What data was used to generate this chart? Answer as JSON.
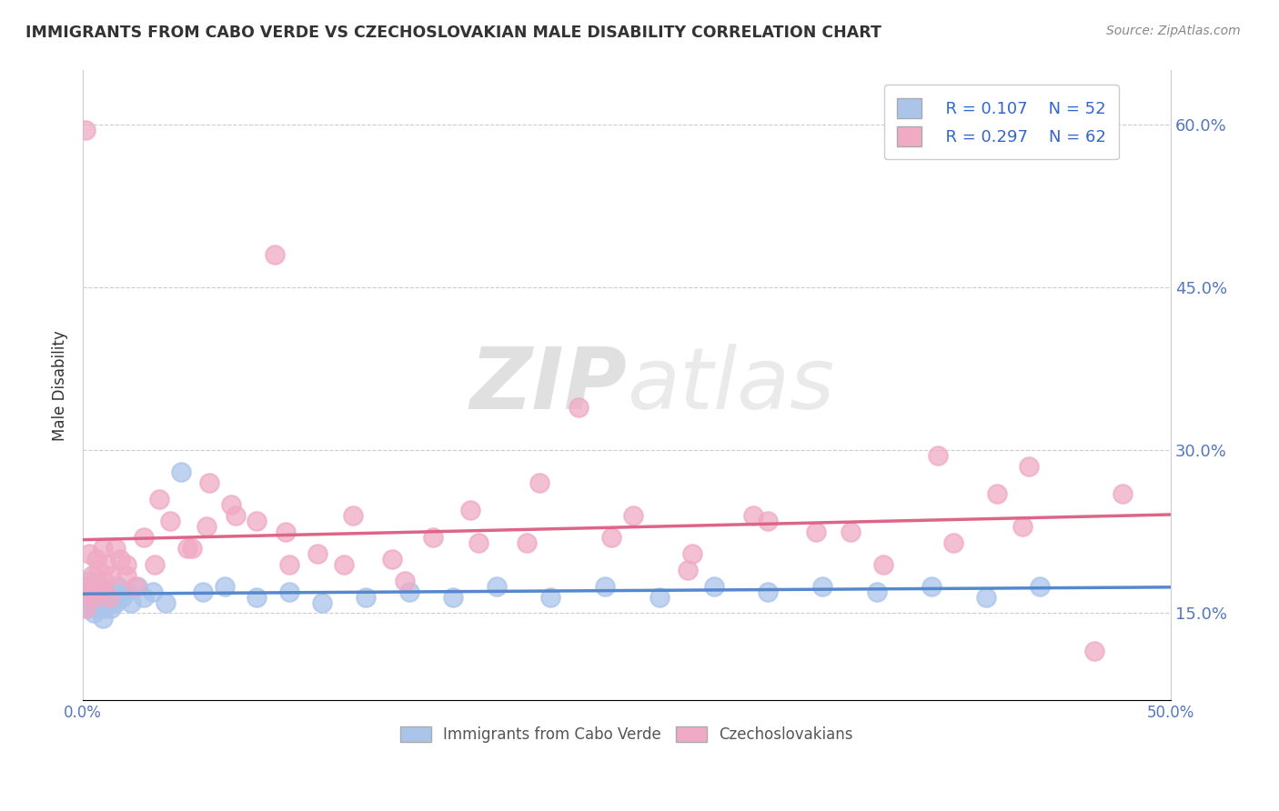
{
  "title": "IMMIGRANTS FROM CABO VERDE VS CZECHOSLOVAKIAN MALE DISABILITY CORRELATION CHART",
  "source": "Source: ZipAtlas.com",
  "ylabel": "Male Disability",
  "x_min": 0.0,
  "x_max": 0.5,
  "y_min": 0.07,
  "y_max": 0.65,
  "right_y_ticks": [
    0.15,
    0.3,
    0.45,
    0.6
  ],
  "right_y_labels": [
    "15.0%",
    "30.0%",
    "45.0%",
    "60.0%"
  ],
  "x_ticks": [
    0.0,
    0.5
  ],
  "x_tick_labels": [
    "0.0%",
    "50.0%"
  ],
  "cabo_verde_R": "0.107",
  "cabo_verde_N": "52",
  "czech_R": "0.297",
  "czech_N": "62",
  "cabo_verde_color": "#aac4ea",
  "czech_color": "#f0aac4",
  "cabo_verde_line_color": "#5588cc",
  "czech_line_color": "#dd6688",
  "cabo_verde_x": [
    0.001,
    0.002,
    0.002,
    0.003,
    0.003,
    0.004,
    0.004,
    0.005,
    0.005,
    0.006,
    0.006,
    0.007,
    0.007,
    0.008,
    0.008,
    0.009,
    0.009,
    0.01,
    0.01,
    0.011,
    0.012,
    0.013,
    0.014,
    0.015,
    0.016,
    0.018,
    0.02,
    0.022,
    0.025,
    0.028,
    0.032,
    0.038,
    0.045,
    0.055,
    0.065,
    0.08,
    0.095,
    0.11,
    0.13,
    0.15,
    0.17,
    0.19,
    0.215,
    0.24,
    0.265,
    0.29,
    0.315,
    0.34,
    0.365,
    0.39,
    0.415,
    0.44
  ],
  "cabo_verde_y": [
    0.17,
    0.155,
    0.175,
    0.16,
    0.18,
    0.165,
    0.175,
    0.15,
    0.17,
    0.16,
    0.175,
    0.155,
    0.17,
    0.16,
    0.175,
    0.145,
    0.165,
    0.155,
    0.17,
    0.16,
    0.165,
    0.155,
    0.17,
    0.16,
    0.175,
    0.165,
    0.17,
    0.16,
    0.175,
    0.165,
    0.17,
    0.16,
    0.28,
    0.17,
    0.175,
    0.165,
    0.17,
    0.16,
    0.165,
    0.17,
    0.165,
    0.175,
    0.165,
    0.175,
    0.165,
    0.175,
    0.17,
    0.175,
    0.17,
    0.175,
    0.165,
    0.175
  ],
  "czech_x": [
    0.001,
    0.002,
    0.003,
    0.003,
    0.004,
    0.005,
    0.006,
    0.006,
    0.007,
    0.008,
    0.009,
    0.01,
    0.011,
    0.012,
    0.013,
    0.015,
    0.017,
    0.02,
    0.024,
    0.028,
    0.033,
    0.04,
    0.048,
    0.057,
    0.068,
    0.08,
    0.093,
    0.108,
    0.124,
    0.142,
    0.161,
    0.182,
    0.204,
    0.228,
    0.253,
    0.28,
    0.308,
    0.337,
    0.368,
    0.4,
    0.432,
    0.465,
    0.02,
    0.035,
    0.05,
    0.07,
    0.095,
    0.12,
    0.148,
    0.178,
    0.21,
    0.243,
    0.278,
    0.315,
    0.353,
    0.393,
    0.435,
    0.478,
    0.058,
    0.088,
    0.001,
    0.42
  ],
  "czech_y": [
    0.595,
    0.175,
    0.17,
    0.205,
    0.185,
    0.165,
    0.2,
    0.175,
    0.19,
    0.17,
    0.21,
    0.18,
    0.195,
    0.165,
    0.185,
    0.21,
    0.2,
    0.185,
    0.175,
    0.22,
    0.195,
    0.235,
    0.21,
    0.23,
    0.25,
    0.235,
    0.225,
    0.205,
    0.24,
    0.2,
    0.22,
    0.215,
    0.215,
    0.34,
    0.24,
    0.205,
    0.24,
    0.225,
    0.195,
    0.215,
    0.23,
    0.115,
    0.195,
    0.255,
    0.21,
    0.24,
    0.195,
    0.195,
    0.18,
    0.245,
    0.27,
    0.22,
    0.19,
    0.235,
    0.225,
    0.295,
    0.285,
    0.26,
    0.27,
    0.48,
    0.155,
    0.26
  ],
  "watermark_zip": "ZIP",
  "watermark_atlas": "atlas",
  "background_color": "#ffffff",
  "grid_color": "#cccccc"
}
